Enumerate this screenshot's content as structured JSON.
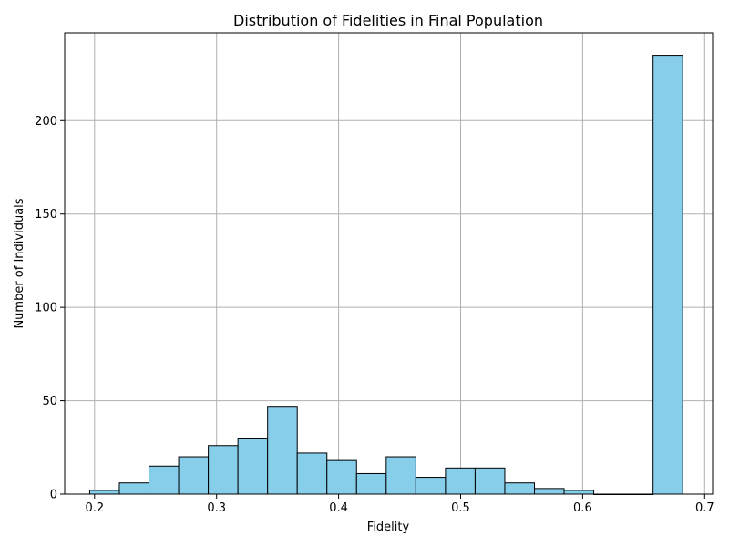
{
  "chart_data": {
    "type": "bar",
    "title": "Distribution of Fidelities in Final Population",
    "xlabel": "Fidelity",
    "ylabel": "Number of Individuals",
    "bar_color": "#87CEEB",
    "edge_color": "#000000",
    "grid": true,
    "xlim": [
      0.1755,
      0.7065
    ],
    "ylim": [
      0,
      247
    ],
    "x_ticks": [
      0.2,
      0.3,
      0.4,
      0.5,
      0.6,
      0.7
    ],
    "x_tick_labels": [
      "0.2",
      "0.3",
      "0.4",
      "0.5",
      "0.6",
      "0.7"
    ],
    "y_ticks": [
      0,
      50,
      100,
      150,
      200
    ],
    "y_tick_labels": [
      "0",
      "50",
      "100",
      "150",
      "200"
    ],
    "bins": [
      {
        "x0": 0.196,
        "x1": 0.2203,
        "count": 2
      },
      {
        "x0": 0.2203,
        "x1": 0.2446,
        "count": 6
      },
      {
        "x0": 0.2446,
        "x1": 0.2689,
        "count": 15
      },
      {
        "x0": 0.2689,
        "x1": 0.2932,
        "count": 20
      },
      {
        "x0": 0.2932,
        "x1": 0.3175,
        "count": 26
      },
      {
        "x0": 0.3175,
        "x1": 0.3418,
        "count": 30
      },
      {
        "x0": 0.3418,
        "x1": 0.3661,
        "count": 47
      },
      {
        "x0": 0.3661,
        "x1": 0.3904,
        "count": 22
      },
      {
        "x0": 0.3904,
        "x1": 0.4147,
        "count": 18
      },
      {
        "x0": 0.4147,
        "x1": 0.439,
        "count": 11
      },
      {
        "x0": 0.439,
        "x1": 0.4633,
        "count": 20
      },
      {
        "x0": 0.4633,
        "x1": 0.4876,
        "count": 9
      },
      {
        "x0": 0.4876,
        "x1": 0.5119,
        "count": 14
      },
      {
        "x0": 0.5119,
        "x1": 0.5362,
        "count": 14
      },
      {
        "x0": 0.5362,
        "x1": 0.5605,
        "count": 6
      },
      {
        "x0": 0.5605,
        "x1": 0.5848,
        "count": 3
      },
      {
        "x0": 0.5848,
        "x1": 0.6091,
        "count": 2
      },
      {
        "x0": 0.6091,
        "x1": 0.6334,
        "count": 0
      },
      {
        "x0": 0.6334,
        "x1": 0.6577,
        "count": 0
      },
      {
        "x0": 0.6577,
        "x1": 0.682,
        "count": 235
      }
    ]
  }
}
